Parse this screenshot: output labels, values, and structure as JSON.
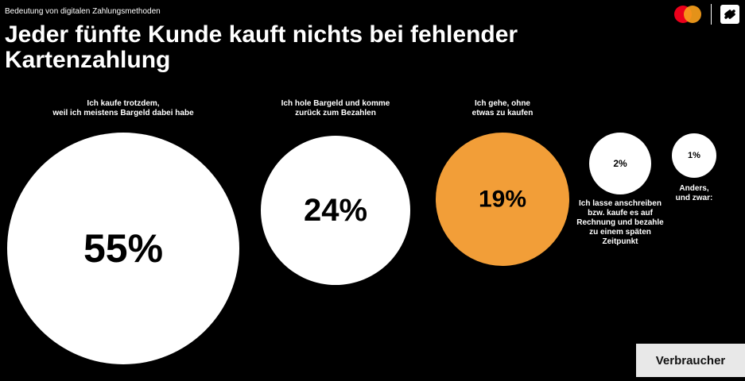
{
  "header": {
    "kicker": "Bedeutung von digitalen Zahlungsmethoden",
    "title": "Jeder fünfte Kunde kauft nichts bei fehlender Kartenzahlung"
  },
  "badge": {
    "label": "Verbraucher"
  },
  "colors": {
    "background": "#000000",
    "bubble_white": "#ffffff",
    "bubble_accent": "#f29e38",
    "mastercard_red": "#eb001b",
    "mastercard_orange": "#f79e1b"
  },
  "logos": [
    "mastercard-logo",
    "brand-s-logo"
  ],
  "chart_data": {
    "type": "bubble",
    "unit": "%",
    "items": [
      {
        "value": 55,
        "label": "55%",
        "text_lines": [
          "Ich kaufe trotzdem,",
          "weil ich meistens Bargeld dabei habe"
        ],
        "color": "#ffffff"
      },
      {
        "value": 24,
        "label": "24%",
        "text_lines": [
          "Ich hole Bargeld und komme",
          "zurück zum Bezahlen"
        ],
        "color": "#ffffff"
      },
      {
        "value": 19,
        "label": "19%",
        "text_lines": [
          "Ich gehe, ohne",
          "etwas zu kaufen"
        ],
        "color": "#f29e38"
      },
      {
        "value": 2,
        "label": "2%",
        "text_lines": [
          "Ich lasse anschreiben",
          "bzw. kaufe es auf",
          "Rechnung und bezahle",
          "zu einem späten",
          "Zeitpunkt"
        ],
        "color": "#ffffff"
      },
      {
        "value": 1,
        "label": "1%",
        "text_lines": [
          "Anders,",
          "und zwar:"
        ],
        "color": "#ffffff"
      }
    ]
  }
}
